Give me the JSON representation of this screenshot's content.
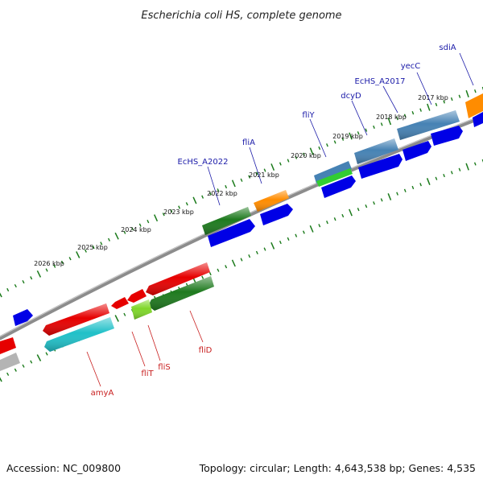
{
  "title": "Escherichia coli HS, complete genome",
  "footer": {
    "accession": "Accession: NC_009800",
    "summary": "Topology: circular; Length: 4,643,538 bp; Genes: 4,535"
  },
  "colors": {
    "backbone": "#8a8a8a",
    "tick": "#1a7a1a",
    "forward_label": "#1a1aa8",
    "reverse_label": "#c81e1e"
  },
  "ticks": [
    "2017 kbp",
    "2018 kbp",
    "2019 kbp",
    "2020 kbp",
    "2021 kbp",
    "2022 kbp",
    "2023 kbp",
    "2024 kbp",
    "2025 kbp",
    "2026 kbp"
  ],
  "gene_labels": {
    "forward": [
      "sdiA",
      "yecC",
      "EcHS_A2017",
      "dcyD",
      "fliY",
      "fliA",
      "EcHS_A2022"
    ],
    "reverse": [
      "fliD",
      "fliS",
      "fliT",
      "amyA"
    ]
  }
}
